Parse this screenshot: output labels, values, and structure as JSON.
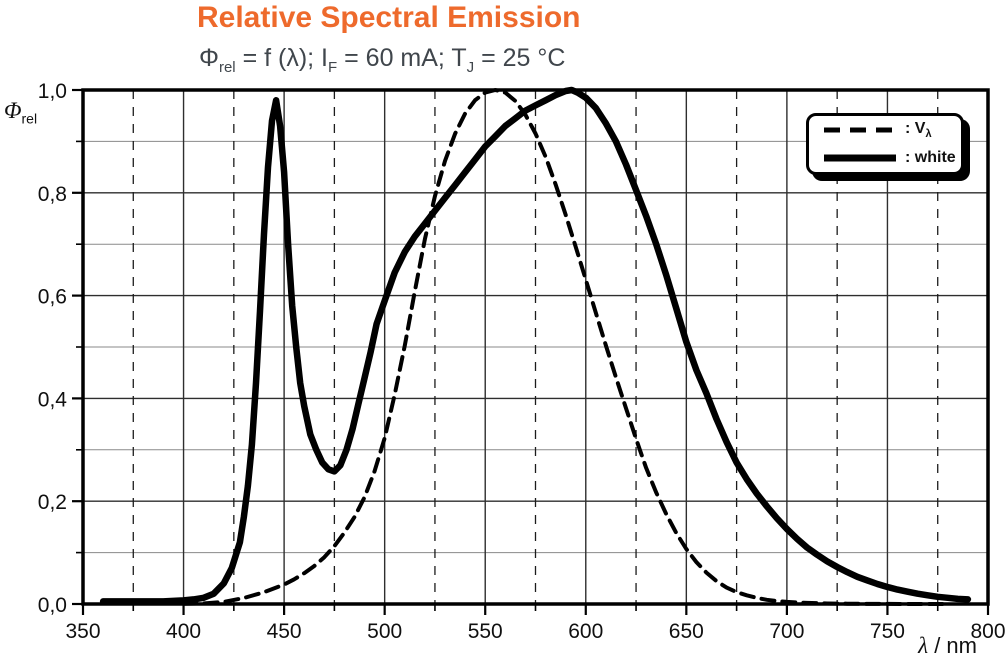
{
  "title": {
    "text": "Relative Spectral Emission"
  },
  "subtitle": {
    "seg1": "Φ",
    "seg1_sub": "rel",
    "seg2": " = f (λ); I",
    "seg2_sub": "F",
    "seg3": " = 60 mA; T",
    "seg3_sub": "J",
    "seg4": " = 25 °C"
  },
  "axes": {
    "y_title_symbol": "Φ",
    "y_title_sub": "rel",
    "x_title_symbol": "λ",
    "x_title_suffix": " / nm"
  },
  "legend": {
    "entries": [
      {
        "marker": "dashed",
        "prefix": ": V",
        "sub": "λ"
      },
      {
        "marker": "solid",
        "label": ": white"
      }
    ]
  },
  "colors": {
    "title": "#EE6A2C",
    "subtitle": "#40464C",
    "curves": "#000000",
    "grid_major": "#2e2e2e",
    "grid_minor": "#8a8a8a",
    "background": "#ffffff"
  },
  "chart_data": {
    "type": "line",
    "title": "Relative Spectral Emission",
    "subtitle": "Φrel = f (λ); IF = 60 mA; TJ = 25 °C",
    "xlabel": "λ / nm",
    "ylabel": "Φrel",
    "xlim": [
      350,
      800
    ],
    "ylim": [
      0,
      1
    ],
    "grid": {
      "x_major": [
        400,
        450,
        500,
        550,
        600,
        650,
        700,
        750
      ],
      "x_minor": [
        375,
        425,
        475,
        525,
        575,
        625,
        675,
        725,
        775
      ],
      "y_major": [
        0.2,
        0.4,
        0.6,
        0.8
      ],
      "y_minor": [
        0.1,
        0.3,
        0.5,
        0.7,
        0.9
      ]
    },
    "x_ticks": {
      "values": [
        350,
        400,
        450,
        500,
        550,
        600,
        650,
        700,
        750,
        800
      ],
      "labels": [
        "350",
        "400",
        "450",
        "500",
        "550",
        "600",
        "650",
        "700",
        "750",
        "800"
      ],
      "minor": [
        375,
        425,
        475,
        525,
        575,
        625,
        675,
        725,
        775
      ]
    },
    "y_ticks": {
      "values": [
        0,
        0.2,
        0.4,
        0.6,
        0.8,
        1.0
      ],
      "labels": [
        "0,0",
        "0,2",
        "0,4",
        "0,6",
        "0,8",
        "1,0"
      ],
      "minor": [
        0.1,
        0.3,
        0.5,
        0.7,
        0.9
      ]
    },
    "legend_position": "top-right",
    "series": [
      {
        "name": "Vλ",
        "style": "dashed",
        "x": [
          400,
          410,
          420,
          430,
          440,
          450,
          455,
          460,
          465,
          470,
          475,
          480,
          485,
          490,
          495,
          500,
          505,
          510,
          515,
          520,
          525,
          530,
          535,
          540,
          545,
          550,
          555,
          560,
          565,
          570,
          575,
          580,
          585,
          590,
          595,
          600,
          605,
          610,
          615,
          620,
          625,
          630,
          635,
          640,
          645,
          650,
          655,
          660,
          665,
          670,
          675,
          680,
          685,
          690,
          695,
          700,
          710,
          720,
          730,
          740,
          750,
          760,
          770,
          780
        ],
        "y": [
          0.0004,
          0.0012,
          0.004,
          0.0116,
          0.023,
          0.038,
          0.048,
          0.06,
          0.0739,
          0.091,
          0.1126,
          0.139,
          0.1693,
          0.208,
          0.2586,
          0.323,
          0.4073,
          0.503,
          0.6082,
          0.71,
          0.7932,
          0.862,
          0.9149,
          0.954,
          0.9803,
          0.995,
          1.0,
          0.995,
          0.9786,
          0.952,
          0.9154,
          0.87,
          0.8163,
          0.757,
          0.6949,
          0.631,
          0.5668,
          0.503,
          0.4412,
          0.381,
          0.321,
          0.265,
          0.217,
          0.175,
          0.1382,
          0.107,
          0.0816,
          0.061,
          0.0446,
          0.032,
          0.0232,
          0.017,
          0.0119,
          0.0082,
          0.0057,
          0.0041,
          0.0021,
          0.001,
          0.0005,
          0.00025,
          0.0001,
          6e-05,
          3e-05,
          2e-05
        ]
      },
      {
        "name": "white",
        "style": "solid",
        "x": [
          360,
          365,
          370,
          375,
          380,
          385,
          390,
          395,
          400,
          405,
          410,
          415,
          420,
          424,
          428,
          430,
          432,
          434,
          436,
          438,
          440,
          442,
          444,
          446,
          448,
          450,
          452,
          454,
          456,
          458,
          460,
          463,
          466,
          469,
          472,
          475,
          478,
          481,
          484,
          487,
          490,
          493,
          496,
          500,
          505,
          510,
          515,
          520,
          525,
          530,
          535,
          540,
          545,
          550,
          555,
          560,
          565,
          570,
          575,
          580,
          585,
          590,
          593,
          596,
          600,
          605,
          610,
          615,
          620,
          625,
          630,
          635,
          640,
          645,
          650,
          655,
          660,
          665,
          670,
          675,
          680,
          685,
          690,
          695,
          700,
          705,
          710,
          715,
          720,
          725,
          730,
          735,
          740,
          745,
          750,
          755,
          760,
          765,
          770,
          775,
          780,
          785,
          790
        ],
        "y": [
          0.005,
          0.005,
          0.005,
          0.005,
          0.005,
          0.005,
          0.005,
          0.006,
          0.007,
          0.009,
          0.012,
          0.02,
          0.04,
          0.07,
          0.12,
          0.17,
          0.23,
          0.31,
          0.43,
          0.57,
          0.72,
          0.85,
          0.94,
          0.98,
          0.93,
          0.84,
          0.7,
          0.58,
          0.5,
          0.43,
          0.385,
          0.33,
          0.3,
          0.275,
          0.262,
          0.258,
          0.27,
          0.3,
          0.34,
          0.39,
          0.44,
          0.49,
          0.545,
          0.59,
          0.645,
          0.685,
          0.715,
          0.74,
          0.765,
          0.79,
          0.815,
          0.84,
          0.865,
          0.89,
          0.91,
          0.93,
          0.945,
          0.96,
          0.97,
          0.98,
          0.99,
          0.998,
          1.0,
          0.995,
          0.985,
          0.965,
          0.935,
          0.9,
          0.855,
          0.805,
          0.755,
          0.7,
          0.64,
          0.575,
          0.51,
          0.455,
          0.41,
          0.36,
          0.315,
          0.275,
          0.243,
          0.215,
          0.19,
          0.167,
          0.146,
          0.127,
          0.11,
          0.096,
          0.083,
          0.072,
          0.062,
          0.053,
          0.046,
          0.039,
          0.033,
          0.028,
          0.024,
          0.02,
          0.017,
          0.014,
          0.012,
          0.01,
          0.009
        ]
      }
    ]
  }
}
